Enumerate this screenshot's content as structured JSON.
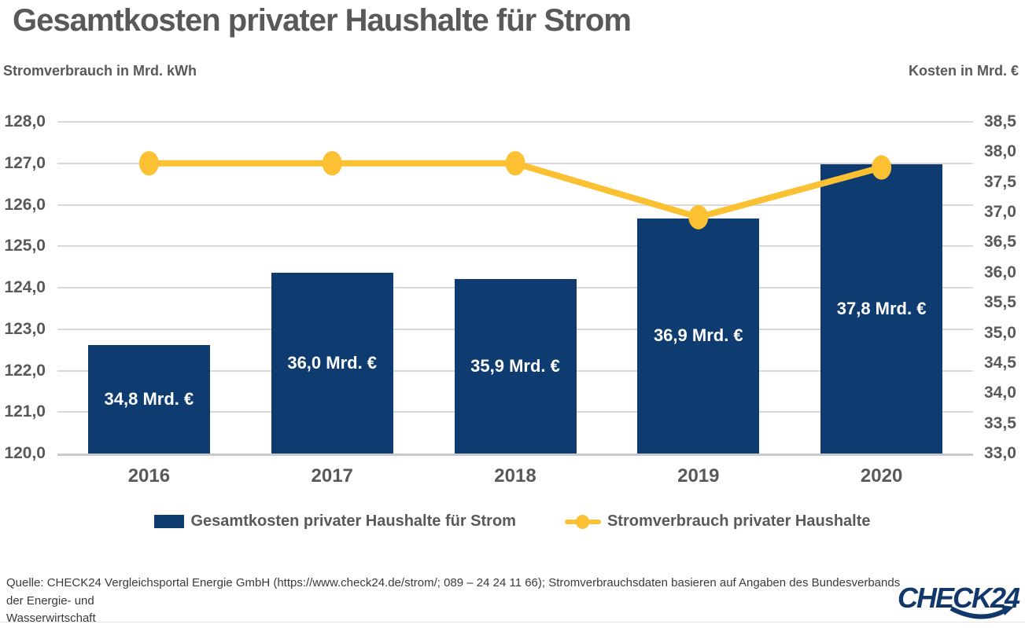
{
  "header": {
    "title": "Gesamtkosten privater Haushalte für Strom",
    "axis_left_title": "Stromverbrauch in Mrd. kWh",
    "axis_right_title": "Kosten in Mrd. €"
  },
  "chart_data": {
    "type": "bar+line",
    "categories": [
      "2016",
      "2017",
      "2018",
      "2019",
      "2020"
    ],
    "series": [
      {
        "name": "Gesamtkosten privater Haushalte für Strom",
        "type": "bar",
        "axis": "right",
        "unit": "Mrd. €",
        "values": [
          34.8,
          36.0,
          35.9,
          36.9,
          37.8
        ],
        "labels": [
          "34,8 Mrd. €",
          "36,0 Mrd. €",
          "35,9 Mrd. €",
          "36,9 Mrd. €",
          "37,8 Mrd. €"
        ],
        "color": "#0e3c70"
      },
      {
        "name": "Stromverbrauch privater Haushalte",
        "type": "line",
        "axis": "left",
        "unit": "Mrd. kWh",
        "values": [
          127.0,
          127.0,
          127.0,
          125.7,
          126.9
        ],
        "color": "#fcc132"
      }
    ],
    "left_axis": {
      "min": 120.0,
      "max": 128.0,
      "step": 1.0,
      "ticks": [
        "128,0",
        "127,0",
        "126,0",
        "125,0",
        "124,0",
        "123,0",
        "122,0",
        "121,0",
        "120,0"
      ]
    },
    "right_axis": {
      "min": 33.0,
      "max": 38.5,
      "step": 0.5,
      "ticks": [
        "38,5",
        "38,0",
        "37,5",
        "37,0",
        "36,5",
        "36,0",
        "35,5",
        "35,0",
        "34,5",
        "34,0",
        "33,5",
        "33,0"
      ]
    },
    "grid": "horizontal",
    "legend_position": "bottom",
    "colors": {
      "bar": "#0e3c70",
      "line": "#fcc132",
      "grid": "#d9d9d9",
      "text": "#58595b"
    }
  },
  "legend": {
    "items": [
      {
        "label": "Gesamtkosten privater Haushalte für Strom",
        "marker": "square-icon"
      },
      {
        "label": "Stromverbrauch privater Haushalte",
        "marker": "line-dot-icon"
      }
    ]
  },
  "source": {
    "line1": "Quelle: CHECK24 Vergleichsportal Energie GmbH (https://www.check24.de/strom/; 089 – 24 24 11 66); Stromverbrauchsdaten basieren auf Angaben des Bundesverbands der Energie- und",
    "line2": "Wasserwirtschaft"
  },
  "logo": {
    "text": "CHECK24"
  }
}
